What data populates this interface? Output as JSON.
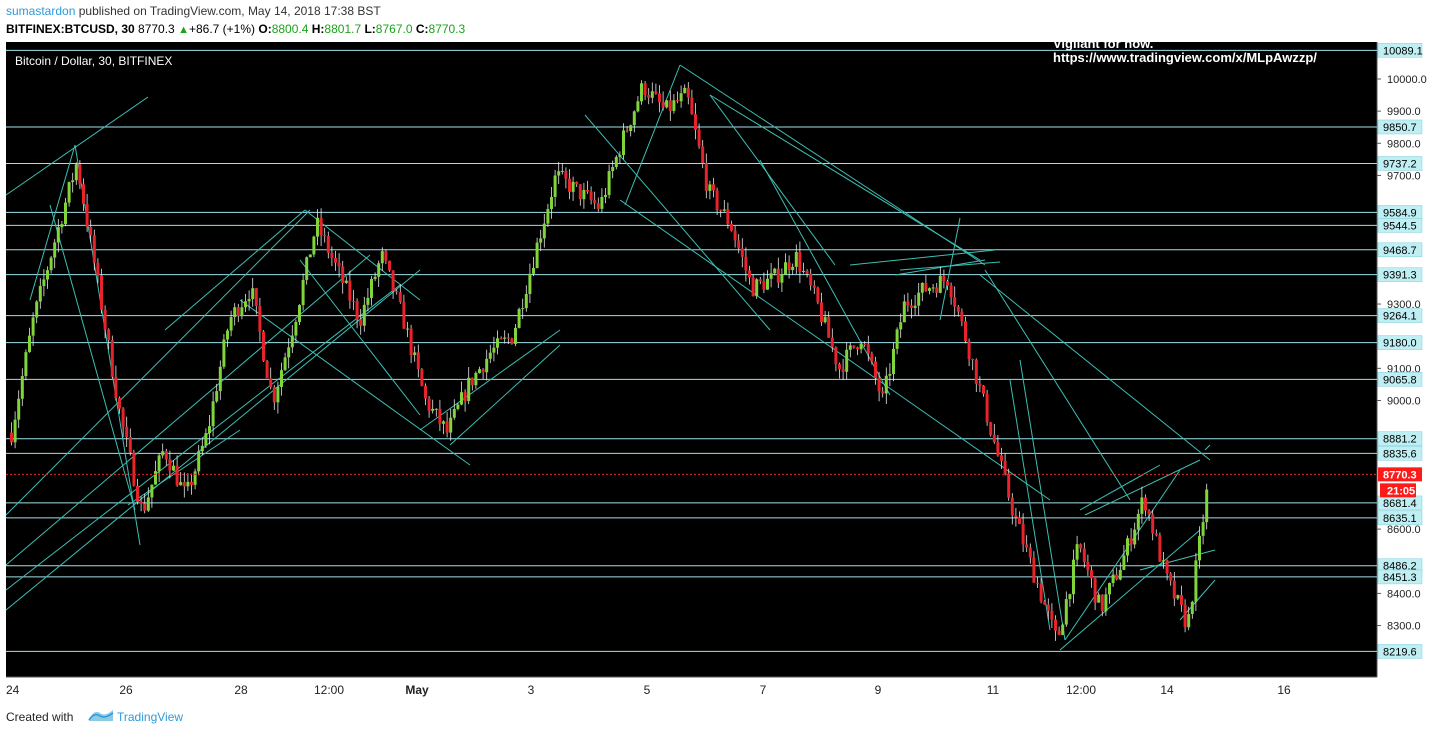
{
  "header": {
    "author": "sumastardon",
    "published_text": "published on TradingView.com, May 14, 2018 17:38 BST",
    "symbol": "BITFINEX:BTCUSD, 30",
    "last": "8770.3",
    "change": "+86.7 (+1%)",
    "o_label": "O:",
    "o_value": "8800.4",
    "h_label": "H:",
    "h_value": "8801.7",
    "l_label": "L:",
    "l_value": "8767.0",
    "c_label": "C:",
    "c_value": "8770.3"
  },
  "chart": {
    "legend_title": "Bitcoin / Dollar, 30, BITFINEX",
    "note_line1": "Vigilant for now.",
    "note_line2": "https://www.tradingview.com/x/MLpAwzzp/",
    "current_price": "8770.3",
    "countdown": "21:05",
    "colors": {
      "background": "#000000",
      "up": "#7fd53a",
      "down": "#e8232c",
      "wick": "#e8e8e8",
      "hline": "#9fe1ea",
      "trend": "#3cbfb3",
      "price_line": "#e8232c",
      "scale_bg": "#ffffff",
      "level_label_bg": "#bfeef3"
    }
  },
  "footer": {
    "created_with": "Created with",
    "brand": "TradingView"
  },
  "chart_data": {
    "type": "candlestick",
    "title": "Bitcoin / Dollar, 30, BITFINEX",
    "y_ticks": [
      8300.0,
      8400.0,
      8600.0,
      9000.0,
      9100.0,
      9300.0,
      9700.0,
      9800.0,
      9900.0,
      10000.0
    ],
    "x_ticks": [
      "24",
      "26",
      "28",
      "12:00",
      "May",
      "3",
      "5",
      "7",
      "9",
      "11",
      "12:00",
      "14",
      "16"
    ],
    "ylim": [
      8140,
      10115
    ],
    "horizontal_levels": [
      10089.1,
      9850.7,
      9737.2,
      9584.9,
      9544.5,
      9468.7,
      9391.3,
      9264.1,
      9180.0,
      9065.8,
      8881.2,
      8835.6,
      8681.4,
      8635.1,
      8486.2,
      8451.3,
      8219.6
    ],
    "last_price": 8770.3,
    "price_path": [
      [
        "24",
        8900
      ],
      [
        "24",
        9250
      ],
      [
        "24",
        9500
      ],
      [
        "25",
        9740
      ],
      [
        "25",
        9350
      ],
      [
        "25",
        8950
      ],
      [
        "26",
        8650
      ],
      [
        "26",
        8850
      ],
      [
        "26",
        8700
      ],
      [
        "27",
        8900
      ],
      [
        "27",
        9250
      ],
      [
        "27",
        9350
      ],
      [
        "28",
        9000
      ],
      [
        "28",
        9250
      ],
      [
        "12:00",
        9550
      ],
      [
        "12:00",
        9400
      ],
      [
        "12:00",
        9250
      ],
      [
        "May",
        9450
      ],
      [
        "May",
        9250
      ],
      [
        "May",
        9000
      ],
      [
        "May",
        8900
      ],
      [
        "2",
        9050
      ],
      [
        "2",
        9150
      ],
      [
        "3",
        9200
      ],
      [
        "3",
        9450
      ],
      [
        "4",
        9700
      ],
      [
        "4",
        9650
      ],
      [
        "5",
        9600
      ],
      [
        "5",
        9800
      ],
      [
        "6",
        9980
      ],
      [
        "6",
        9900
      ],
      [
        "6",
        9950
      ],
      [
        "7",
        9650
      ],
      [
        "7",
        9550
      ],
      [
        "7",
        9350
      ],
      [
        "8",
        9380
      ],
      [
        "8",
        9450
      ],
      [
        "8",
        9300
      ],
      [
        "9",
        9100
      ],
      [
        "9",
        9200
      ],
      [
        "9",
        9000
      ],
      [
        "10",
        9300
      ],
      [
        "10",
        9350
      ],
      [
        "10",
        9380
      ],
      [
        "11",
        9150
      ],
      [
        "11",
        8900
      ],
      [
        "11",
        8650
      ],
      [
        "12:00",
        8450
      ],
      [
        "12:00",
        8250
      ],
      [
        "12:00",
        8550
      ],
      [
        "13",
        8350
      ],
      [
        "13",
        8500
      ],
      [
        "14",
        8700
      ],
      [
        "14",
        8450
      ],
      [
        "14",
        8300
      ],
      [
        "14",
        8770
      ]
    ]
  }
}
